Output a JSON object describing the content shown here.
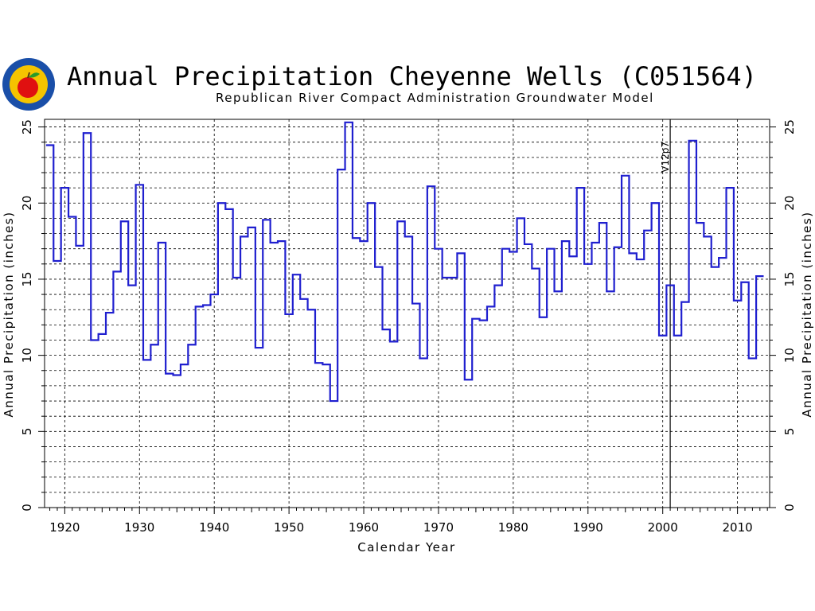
{
  "header": {
    "title": "Annual Precipitation Cheyenne Wells (C051564)",
    "subtitle": "Republican River Compact Administration Groundwater Model"
  },
  "logo": {
    "icon": "apple-seal-logo",
    "colors": {
      "ring": "#1a4fa8",
      "inner": "#f5c400",
      "apple": "#e01010",
      "leaf": "#2a9a2a"
    }
  },
  "chart_data": {
    "type": "line",
    "step": true,
    "title": "Annual Precipitation Cheyenne Wells (C051564)",
    "subtitle": "Republican River Compact Administration Groundwater Model",
    "xlabel": "Calendar Year",
    "ylabel": "Annual Precipitation (inches)",
    "xlim": [
      1917.3,
      2014.3
    ],
    "ylim": [
      0,
      25.5
    ],
    "xticks": [
      1920,
      1930,
      1940,
      1950,
      1960,
      1970,
      1980,
      1990,
      2000,
      2010
    ],
    "yticks": [
      0,
      5,
      10,
      15,
      20,
      25
    ],
    "grid": true,
    "line_color": "#1f1fcf",
    "series": [
      {
        "x": [
          1918,
          1919,
          1920,
          1921,
          1922,
          1923,
          1924,
          1925,
          1926,
          1927,
          1928,
          1929,
          1930,
          1931,
          1932,
          1933,
          1934,
          1935,
          1936,
          1937,
          1938,
          1939,
          1940,
          1941,
          1942,
          1943,
          1944,
          1945,
          1946,
          1947,
          1948,
          1949,
          1950,
          1951,
          1952,
          1953,
          1954,
          1955,
          1956,
          1957,
          1958,
          1959,
          1960,
          1961,
          1962,
          1963,
          1964,
          1965,
          1966,
          1967,
          1968,
          1969,
          1970,
          1971,
          1972,
          1973,
          1974,
          1975,
          1976,
          1977,
          1978,
          1979,
          1980,
          1981,
          1982,
          1983,
          1984,
          1985,
          1986,
          1987,
          1988,
          1989,
          1990,
          1991,
          1992,
          1993,
          1994,
          1995,
          1996,
          1997,
          1998,
          1999,
          2000,
          2001,
          2002,
          2003,
          2004,
          2005,
          2006,
          2007,
          2008,
          2009,
          2010,
          2011,
          2012,
          2013
        ],
        "y": [
          23.8,
          16.2,
          21.0,
          19.1,
          17.2,
          24.6,
          11.0,
          11.4,
          12.8,
          15.5,
          18.8,
          14.6,
          21.2,
          9.7,
          10.7,
          17.4,
          8.8,
          8.7,
          9.4,
          10.7,
          13.2,
          13.3,
          14.0,
          20.0,
          19.6,
          15.1,
          17.8,
          18.4,
          10.5,
          18.9,
          17.4,
          17.5,
          12.7,
          15.3,
          13.7,
          13.0,
          9.5,
          9.4,
          7.0,
          22.2,
          25.3,
          17.7,
          17.5,
          20.0,
          15.8,
          11.7,
          10.9,
          18.8,
          17.8,
          13.4,
          9.8,
          21.1,
          17.0,
          15.1,
          15.1,
          16.7,
          8.4,
          12.4,
          12.3,
          13.2,
          14.6,
          17.0,
          16.8,
          19.0,
          17.3,
          15.7,
          12.5,
          17.0,
          14.2,
          17.5,
          16.5,
          21.0,
          16.0,
          17.4,
          18.7,
          14.2,
          17.1,
          21.8,
          16.7,
          16.3,
          18.2,
          20.0,
          11.3,
          14.6,
          11.3,
          13.5,
          24.1,
          18.7,
          17.8,
          15.8,
          16.4,
          21.0,
          13.6,
          14.8,
          9.8,
          15.2
        ]
      }
    ],
    "annotations": [
      {
        "x": 2001,
        "text": "V12p7"
      }
    ]
  }
}
